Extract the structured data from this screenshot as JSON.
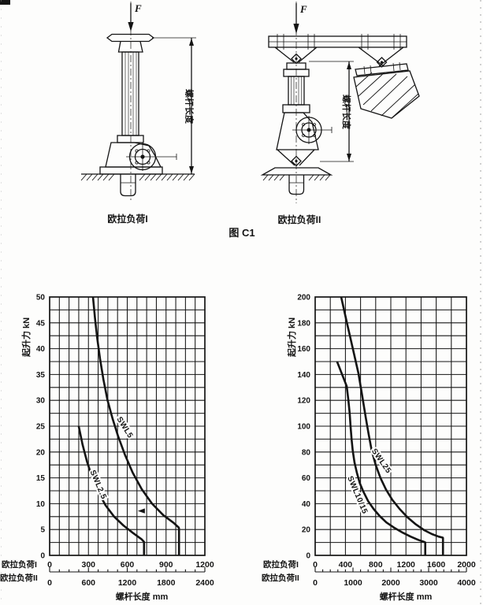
{
  "page": {
    "figure_caption": "图 C1",
    "ink_color": "#141414",
    "paper_color": "#fdfdfc"
  },
  "drawings": {
    "left": {
      "force_label": "F",
      "dim_label": "螺杆长度",
      "caption": "欧拉负荷I"
    },
    "right": {
      "force_label": "F",
      "dim_label": "螺杆长度",
      "caption": "欧拉负荷II"
    }
  },
  "chart_data": [
    {
      "type": "line",
      "title": "",
      "ylabel": "起升力",
      "y_unit": "kN",
      "xlabel": "螺杆长度",
      "x_unit": "mm",
      "ylim": [
        0,
        50
      ],
      "yticks": [
        0,
        5,
        10,
        15,
        20,
        25,
        30,
        35,
        40,
        45,
        50
      ],
      "grid": "on",
      "grid_y_step": 2.5,
      "xlim": [
        0,
        1200
      ],
      "grid_x_step": 75,
      "scale1_label": "欧拉负荷I",
      "scale1_ticks": [
        0,
        300,
        600,
        900,
        1200
      ],
      "scale2_label": "欧拉负荷II",
      "scale2_ticks": [
        0,
        600,
        1200,
        1800,
        2400
      ],
      "scale2_factor": 2,
      "ruler_minor_step_mm": 75,
      "series": [
        {
          "name": "SWL5",
          "points": [
            [
              335,
              50
            ],
            [
              350,
              46
            ],
            [
              368,
              42
            ],
            [
              390,
              38
            ],
            [
              416,
              34
            ],
            [
              448,
              30
            ],
            [
              486,
              26.5
            ],
            [
              530,
              23
            ],
            [
              582,
              19.5
            ],
            [
              642,
              16
            ],
            [
              712,
              12.8
            ],
            [
              792,
              10
            ],
            [
              878,
              7.8
            ],
            [
              958,
              6.3
            ],
            [
              998,
              5.4
            ],
            [
              1000,
              5.2
            ],
            [
              1000,
              0
            ]
          ],
          "label_at": [
            566,
            24.5
          ],
          "label_angle": 58
        },
        {
          "name": "SWL2.5",
          "points": [
            [
              225,
              25
            ],
            [
              254,
              21.5
            ],
            [
              288,
              18.2
            ],
            [
              328,
              15.2
            ],
            [
              376,
              12.3
            ],
            [
              432,
              9.7
            ],
            [
              498,
              7.5
            ],
            [
              570,
              5.8
            ],
            [
              646,
              4.3
            ],
            [
              712,
              3.1
            ],
            [
              730,
              2.6
            ],
            [
              730,
              0
            ]
          ],
          "label_at": [
            359,
            13.5
          ],
          "label_angle": 67
        }
      ],
      "annotations": [
        {
          "type": "arrow-left",
          "x": 712,
          "y": 8.6
        }
      ]
    },
    {
      "type": "line",
      "title": "",
      "ylabel": "起升力",
      "y_unit": "kN",
      "xlabel": "螺杆长度",
      "x_unit": "mm",
      "ylim": [
        0,
        200
      ],
      "yticks": [
        0,
        20,
        40,
        60,
        80,
        100,
        120,
        140,
        160,
        180,
        200
      ],
      "grid": "on",
      "grid_y_step": 10,
      "xlim": [
        0,
        2000
      ],
      "grid_x_step": 200,
      "scale1_label": "欧拉负荷I",
      "scale1_ticks": [
        0,
        400,
        800,
        1200,
        1600,
        2000
      ],
      "scale2_label": "欧拉负荷II",
      "scale2_ticks": [
        0,
        1000,
        2000,
        3000,
        4000
      ],
      "scale2_factor": 2,
      "ruler_minor_step_mm": 100,
      "series": [
        {
          "name": "SWL25",
          "points": [
            [
              344,
              200
            ],
            [
              420,
              180
            ],
            [
              498,
              160
            ],
            [
              572,
              141
            ],
            [
              626,
              122
            ],
            [
              668,
              107
            ],
            [
              706,
              94
            ],
            [
              748,
              81
            ],
            [
              800,
              70
            ],
            [
              862,
              60
            ],
            [
              936,
              51
            ],
            [
              1020,
              43
            ],
            [
              1116,
              36
            ],
            [
              1220,
              29.5
            ],
            [
              1330,
              24
            ],
            [
              1442,
              19.5
            ],
            [
              1542,
              16.5
            ],
            [
              1632,
              14.5
            ],
            [
              1688,
              13.7
            ],
            [
              1690,
              13.5
            ],
            [
              1690,
              0
            ]
          ],
          "label_at": [
            850,
            72
          ],
          "label_angle": 55
        },
        {
          "name": "SWL10/15",
          "points": [
            [
              290,
              150
            ],
            [
              417,
              131
            ],
            [
              438,
              121
            ],
            [
              456,
              110
            ],
            [
              468,
              100
            ],
            [
              481,
              90
            ],
            [
              497,
              81
            ],
            [
              520,
              72
            ],
            [
              551,
              64
            ],
            [
              590,
              56
            ],
            [
              640,
              49
            ],
            [
              700,
              42
            ],
            [
              772,
              36
            ],
            [
              852,
              30.5
            ],
            [
              942,
              25.5
            ],
            [
              1042,
              21.5
            ],
            [
              1150,
              17.8
            ],
            [
              1262,
              14.5
            ],
            [
              1362,
              12
            ],
            [
              1440,
              10.4
            ],
            [
              1455,
              10
            ],
            [
              1455,
              0
            ]
          ],
          "label_at": [
            531,
            46
          ],
          "label_angle": 67
        }
      ],
      "annotations": []
    }
  ]
}
